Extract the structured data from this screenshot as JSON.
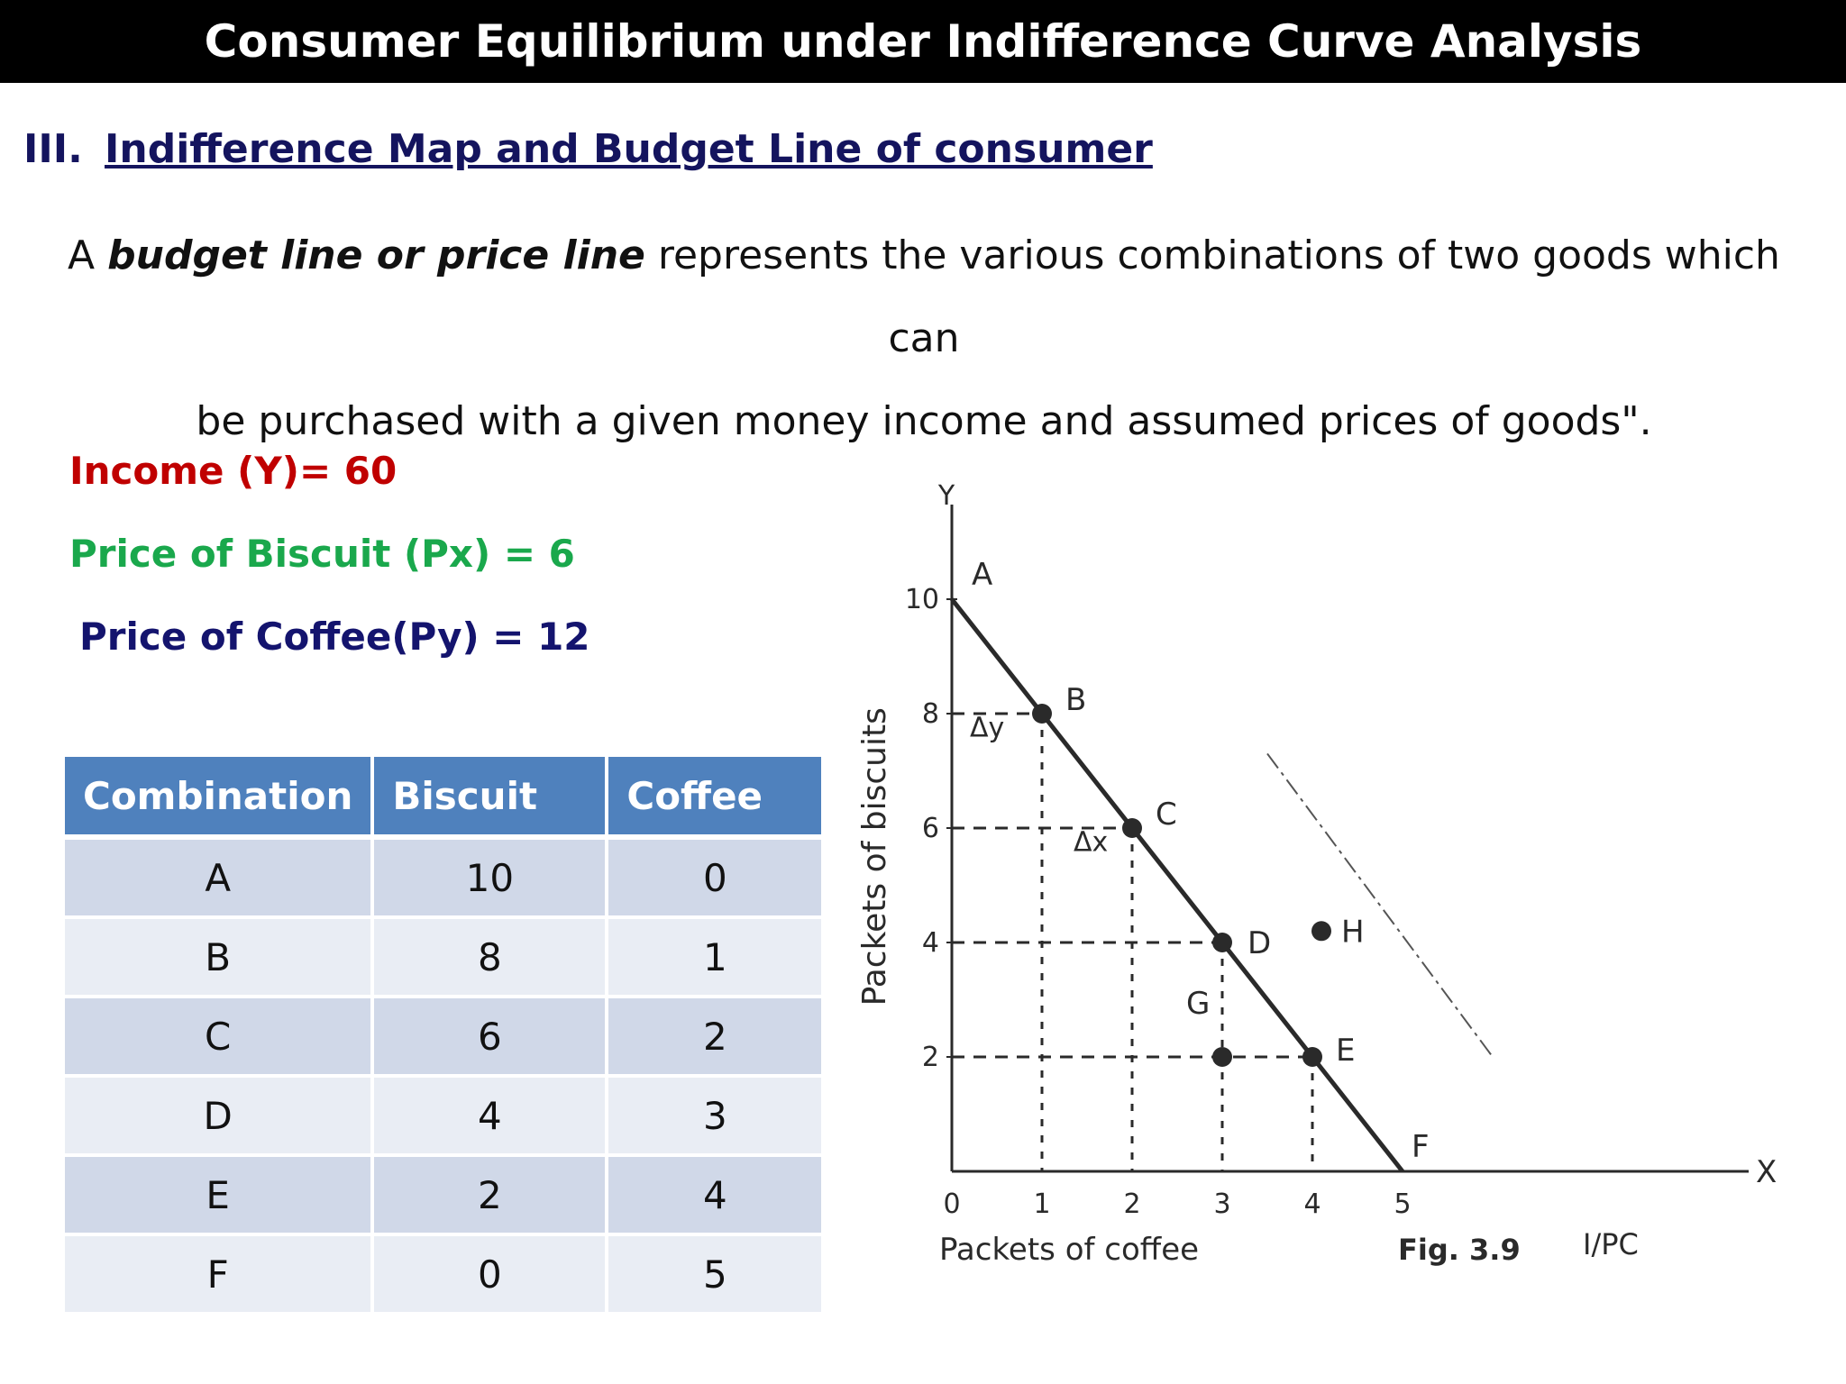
{
  "header": {
    "title": "Consumer Equilibrium under Indifference Curve Analysis"
  },
  "section": {
    "number": "III.",
    "title": "Indifference Map and Budget Line of consumer"
  },
  "definition": {
    "prefix": "A ",
    "term": "budget line or price line",
    "line1_rest": " represents the various combinations of two goods which can",
    "line2": "be purchased with a given money income and assumed prices of goods\"."
  },
  "info": {
    "income": "Income (Y)= 60",
    "price_biscuit": "Price of Biscuit (Px) = 6",
    "price_coffee": "Price of Coffee(Py) = 12"
  },
  "table": {
    "headers": [
      "Combination",
      "Biscuit",
      "Coffee"
    ],
    "rows": [
      [
        "A",
        "10",
        "0"
      ],
      [
        "B",
        "8",
        "1"
      ],
      [
        "C",
        "6",
        "2"
      ],
      [
        "D",
        "4",
        "3"
      ],
      [
        "E",
        "2",
        "4"
      ],
      [
        "F",
        "0",
        "5"
      ]
    ]
  },
  "chart_data": {
    "type": "line",
    "xlabel": "Packets of coffee",
    "ylabel": "Packets of biscuits",
    "x_axis_name": "X",
    "y_axis_name": "Y",
    "xlim": [
      0,
      5
    ],
    "ylim": [
      0,
      10
    ],
    "x_ticks": [
      "0",
      "1",
      "2",
      "3",
      "4",
      "5"
    ],
    "y_ticks": [
      "2",
      "4",
      "6",
      "8",
      "10"
    ],
    "budget_line": [
      {
        "label": "A",
        "x": 0,
        "y": 10
      },
      {
        "label": "B",
        "x": 1,
        "y": 8
      },
      {
        "label": "C",
        "x": 2,
        "y": 6
      },
      {
        "label": "D",
        "x": 3,
        "y": 4
      },
      {
        "label": "E",
        "x": 4,
        "y": 2
      },
      {
        "label": "F",
        "x": 5,
        "y": 0
      }
    ],
    "other_points": [
      {
        "label": "G",
        "x": 3,
        "y": 2
      },
      {
        "label": "H",
        "x": 4.1,
        "y": 4.2
      }
    ],
    "annotations": [
      "Δy",
      "Δx"
    ],
    "figure_label": "Fig. 3.9",
    "credit": "I/PC"
  }
}
